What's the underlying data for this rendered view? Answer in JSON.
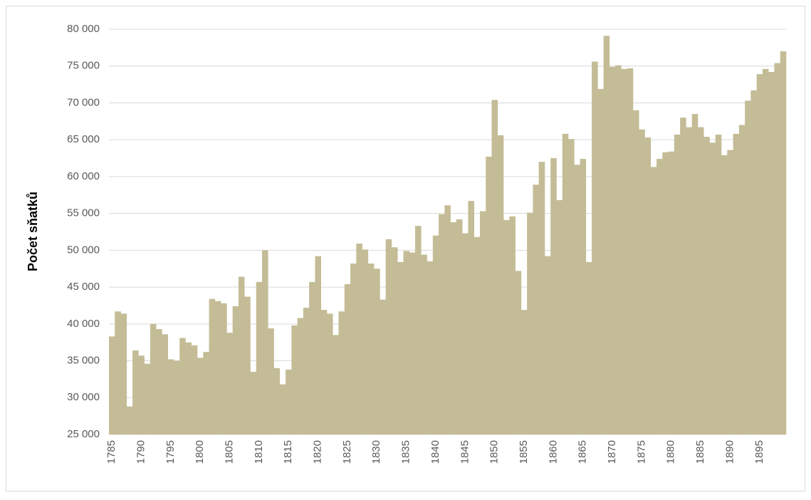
{
  "chart_data": {
    "type": "bar",
    "y_label": "Počet sňatků",
    "categories": [
      "1785",
      null,
      null,
      null,
      null,
      "1790",
      null,
      null,
      null,
      null,
      "1795",
      null,
      null,
      null,
      null,
      "1800",
      null,
      null,
      null,
      null,
      "1805",
      null,
      null,
      null,
      null,
      "1810",
      null,
      null,
      null,
      null,
      "1815",
      null,
      null,
      null,
      null,
      "1820",
      null,
      null,
      null,
      null,
      "1825",
      null,
      null,
      null,
      null,
      "1830",
      null,
      null,
      null,
      null,
      "1835",
      null,
      null,
      null,
      null,
      "1840",
      null,
      null,
      null,
      null,
      "1845",
      null,
      null,
      null,
      null,
      "1850",
      null,
      null,
      null,
      null,
      "1855",
      null,
      null,
      null,
      null,
      "1860",
      null,
      null,
      null,
      null,
      "1865",
      null,
      null,
      null,
      null,
      "1870",
      null,
      null,
      null,
      null,
      "1875",
      null,
      null,
      null,
      null,
      "1880",
      null,
      null,
      null,
      null,
      "1885",
      null,
      null,
      null,
      null,
      "1890",
      null,
      null,
      null,
      null,
      "1895",
      null,
      null,
      null,
      null
    ],
    "values": [
      38300,
      41700,
      41400,
      28800,
      36400,
      35700,
      34600,
      40000,
      39300,
      38600,
      35200,
      35000,
      38100,
      37500,
      37100,
      35400,
      36200,
      43400,
      43100,
      42800,
      38800,
      42400,
      46400,
      43700,
      33500,
      45700,
      50000,
      39400,
      34000,
      31800,
      33800,
      39800,
      40800,
      42200,
      45700,
      49200,
      41900,
      41400,
      38500,
      41700,
      45400,
      48200,
      50900,
      50100,
      48200,
      47500,
      43300,
      51500,
      50400,
      48400,
      49900,
      49700,
      53300,
      49400,
      48500,
      52000,
      54900,
      56100,
      53800,
      54200,
      52300,
      56700,
      51800,
      55300,
      62700,
      70400,
      65600,
      54100,
      54600,
      47200,
      41900,
      55100,
      58900,
      62000,
      49200,
      62500,
      56800,
      65800,
      65100,
      61600,
      62400,
      48400,
      75600,
      71900,
      79100,
      74900,
      75100,
      74600,
      74700,
      69000,
      66400,
      65300,
      61300,
      62400,
      63300,
      63400,
      65700,
      68000,
      66700,
      68500,
      66700,
      65400,
      64600,
      65700,
      62900,
      63600,
      65800,
      67000,
      70300,
      71700,
      73900,
      74600,
      74200,
      75400,
      77000
    ],
    "color": "#c4bc96",
    "ylim": [
      25000,
      80000
    ],
    "yticks": [
      {
        "value": 25000,
        "label": "25 000"
      },
      {
        "value": 30000,
        "label": "30 000"
      },
      {
        "value": 35000,
        "label": "35 000"
      },
      {
        "value": 40000,
        "label": "40 000"
      },
      {
        "value": 45000,
        "label": "45 000"
      },
      {
        "value": 50000,
        "label": "50 000"
      },
      {
        "value": 55000,
        "label": "55 000"
      },
      {
        "value": 60000,
        "label": "60 000"
      },
      {
        "value": 65000,
        "label": "65 000"
      },
      {
        "value": 70000,
        "label": "70 000"
      },
      {
        "value": 75000,
        "label": "75 000"
      },
      {
        "value": 80000,
        "label": "80 000"
      }
    ],
    "grid": true
  }
}
